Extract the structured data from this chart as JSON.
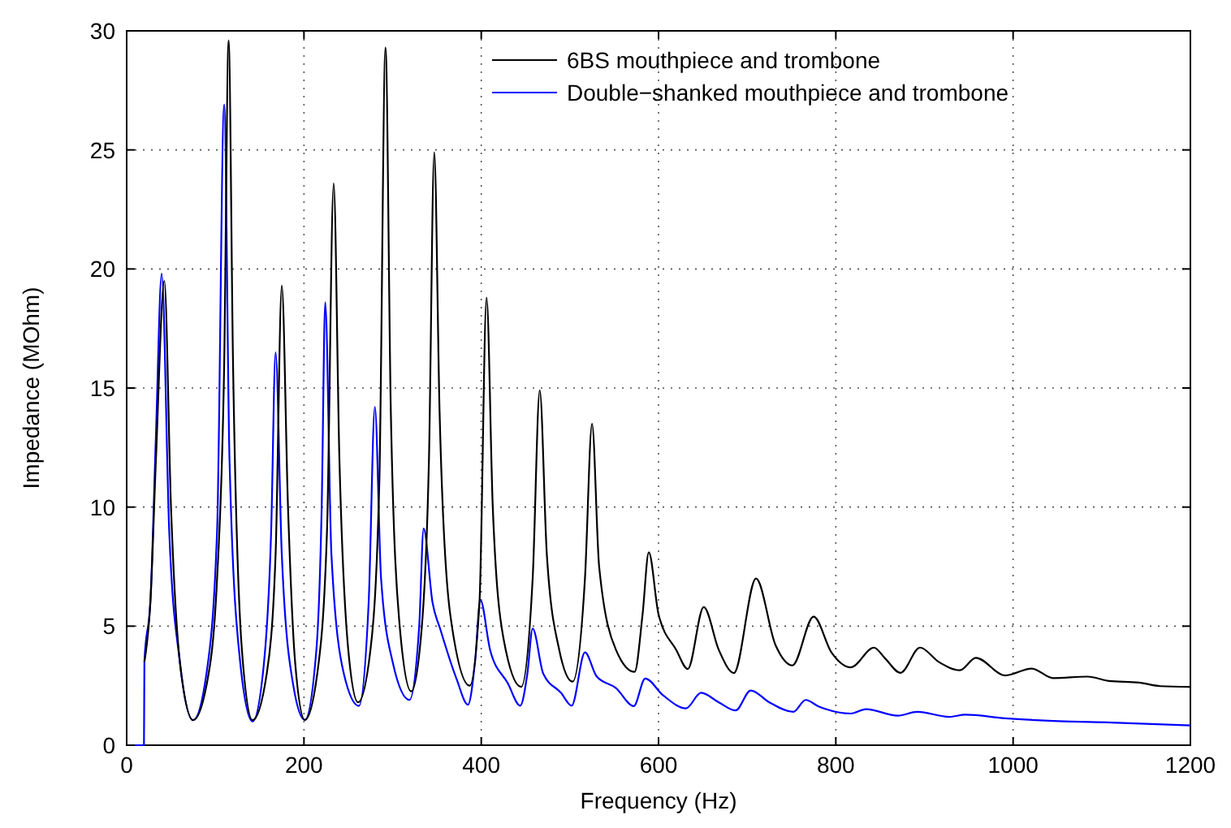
{
  "chart_data": {
    "type": "line",
    "xlabel": "Frequency (Hz)",
    "ylabel": "Impedance (MOhm)",
    "xlim": [
      0,
      1200
    ],
    "xticks": [
      0,
      200,
      400,
      600,
      800,
      1000,
      1200
    ],
    "ylim": [
      0,
      30
    ],
    "yticks": [
      0,
      5,
      10,
      15,
      20,
      25,
      30
    ],
    "grid": true,
    "legend": "top right",
    "marker": "none",
    "line_style": "solid",
    "series": [
      {
        "name": "6BS mouthpiece and trombone",
        "color": "#000000",
        "x": [
          20,
          27,
          33,
          42.5,
          50,
          60,
          75,
          90,
          102,
          110,
          115,
          120,
          130,
          142,
          158,
          168,
          175,
          182,
          190,
          201,
          215,
          226,
          233.5,
          240,
          250,
          261,
          275,
          285,
          292,
          298,
          308,
          321,
          333,
          341,
          347,
          353,
          365,
          387,
          398,
          406,
          413,
          425,
          445,
          458,
          466,
          474,
          488,
          503,
          517,
          525,
          533,
          552,
          573,
          582,
          589,
          600,
          620,
          633,
          651,
          668,
          685,
          710,
          732,
          751,
          775,
          795,
          817,
          843,
          855,
          873,
          895,
          916,
          940,
          958,
          991,
          1021,
          1045,
          1084,
          1108,
          1142,
          1166,
          1200
        ],
        "values": [
          3.5,
          6.2,
          12,
          19.5,
          10,
          3.5,
          1.05,
          2.5,
          7,
          16,
          29.6,
          16,
          4,
          1.05,
          3,
          8,
          19.3,
          10,
          3.5,
          1.06,
          3,
          9,
          23.6,
          12,
          4,
          1.8,
          4,
          11,
          29.3,
          14,
          5,
          2.26,
          5,
          12,
          24.9,
          14,
          5.5,
          2.5,
          6,
          18.8,
          10,
          4.5,
          2.45,
          7,
          14.9,
          8,
          4,
          2.67,
          7,
          13.5,
          7.5,
          4,
          3.08,
          5.5,
          8.1,
          5.5,
          4.0,
          3.2,
          5.8,
          4,
          3.03,
          7.0,
          4.2,
          3.35,
          5.4,
          3.9,
          3.27,
          4.1,
          3.67,
          3.04,
          4.1,
          3.5,
          3.15,
          3.67,
          2.93,
          3.22,
          2.82,
          2.88,
          2.7,
          2.63,
          2.48,
          2.45
        ]
      },
      {
        "name": "Double−shanked mouthpiece and trombone",
        "color": "#0000ff",
        "x": [
          0,
          19.5,
          20,
          27,
          33,
          39.5,
          48,
          60,
          75,
          90,
          102,
          110,
          116,
          128,
          142,
          155,
          163,
          168,
          175,
          188,
          201,
          214,
          220,
          224,
          231,
          245,
          262,
          273,
          280,
          287,
          300,
          319,
          330,
          335,
          345,
          354,
          372,
          385,
          393,
          399,
          410,
          430,
          444,
          452,
          458,
          470,
          490,
          502,
          517,
          530,
          552,
          572,
          585,
          605,
          631,
          648,
          668,
          687,
          704,
          725,
          752,
          766,
          780,
          817,
          834,
          870,
          892,
          928,
          946,
          991,
          1051,
          1111,
          1200
        ],
        "values": [
          0,
          0,
          3.5,
          6.2,
          13,
          19.8,
          9,
          3.5,
          1.05,
          3,
          9,
          26.9,
          12,
          3.5,
          1.0,
          3.5,
          9,
          16.5,
          8,
          2.5,
          1.06,
          4,
          10,
          18.6,
          8,
          3,
          1.65,
          6,
          14.2,
          7,
          3.5,
          1.9,
          5,
          9.1,
          6,
          4.85,
          2.8,
          1.7,
          3.5,
          6.1,
          4,
          2.6,
          1.66,
          3,
          4.9,
          3,
          2.2,
          1.66,
          3.9,
          2.9,
          2.4,
          1.64,
          2.8,
          2.1,
          1.55,
          2.2,
          1.8,
          1.46,
          2.3,
          1.8,
          1.4,
          1.9,
          1.64,
          1.33,
          1.51,
          1.24,
          1.4,
          1.19,
          1.28,
          1.13,
          1.01,
          0.95,
          0.83
        ]
      }
    ]
  }
}
